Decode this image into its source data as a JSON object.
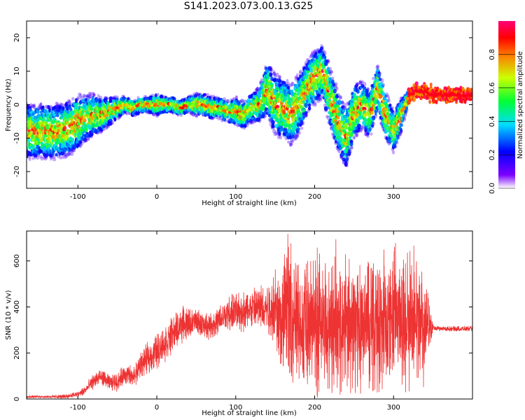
{
  "title": "S141.2023.073.00.13.G25",
  "colors": {
    "snr_line": "#ee3333",
    "axis": "#000000"
  },
  "chart_data": [
    {
      "type": "heatmap",
      "xlabel": "Height of straight line (km)",
      "ylabel": "Frequency (Hz)",
      "xlim": [
        -165,
        400
      ],
      "ylim": [
        -25,
        25
      ],
      "xticks": [
        -100,
        0,
        100,
        200,
        300
      ],
      "xtick_labels": [
        "-100",
        "0",
        "100",
        "200",
        "300"
      ],
      "yticks": [
        -20,
        -10,
        0,
        10,
        20
      ],
      "ytick_labels": [
        "-20",
        "-10",
        "0",
        "10",
        "20"
      ],
      "colorbar": {
        "label": "Normalized spectral amplitude",
        "range": [
          0,
          1
        ],
        "ticks": [
          0.0,
          0.2,
          0.4,
          0.6,
          0.8
        ],
        "tick_labels": [
          "0.0",
          "0.2",
          "0.4",
          "0.6",
          "0.8"
        ],
        "colormap": "rainbow (white-violet-blue-cyan-green-yellow-red-magenta)"
      },
      "ridge": {
        "x": [
          -125,
          -110,
          -100,
          -90,
          -80,
          -70,
          -60,
          -50,
          -40,
          -30,
          -20,
          -10,
          0,
          10,
          20,
          30,
          40,
          50,
          60,
          70,
          80,
          90,
          100,
          110,
          120,
          130,
          140,
          150,
          160,
          170,
          180,
          190,
          200,
          210,
          220,
          230,
          240,
          250,
          260,
          270,
          280,
          290,
          300,
          310,
          320,
          330,
          340,
          350,
          360,
          370,
          380,
          390,
          400
        ],
        "y": [
          -8,
          -7,
          -5,
          -4,
          -3,
          -3,
          -2,
          -1,
          0,
          -1,
          0,
          0,
          0,
          0,
          0,
          -1,
          0,
          0,
          0,
          -1,
          -1,
          -2,
          -2,
          -3,
          -1,
          0,
          5,
          0,
          -1,
          -3,
          0,
          5,
          8,
          10,
          2,
          -5,
          -10,
          -2,
          0,
          -3,
          5,
          -3,
          -8,
          -3,
          3,
          4,
          4,
          3,
          3,
          3,
          3,
          3,
          3
        ]
      },
      "spread_hz": [
        8,
        8,
        8,
        7,
        6,
        5,
        4,
        3,
        2,
        2,
        2,
        2,
        3,
        2,
        2,
        2,
        2,
        3,
        3,
        3,
        3,
        3,
        4,
        4,
        4,
        5,
        8,
        9,
        9,
        9,
        9,
        8,
        8,
        8,
        9,
        9,
        9,
        8,
        7,
        7,
        7,
        7,
        6,
        5,
        1,
        1,
        1,
        1,
        1,
        1,
        1,
        1,
        1
      ]
    },
    {
      "type": "line",
      "xlabel": "Height of straight line (km)",
      "ylabel": "SNR (10 * v/v)",
      "xlim": [
        -165,
        400
      ],
      "ylim": [
        0,
        730
      ],
      "xticks": [
        -100,
        0,
        100,
        200,
        300
      ],
      "xtick_labels": [
        "-100",
        "0",
        "100",
        "200",
        "300"
      ],
      "yticks": [
        0,
        200,
        400,
        600
      ],
      "ytick_labels": [
        "0",
        "200",
        "400",
        "600"
      ],
      "series": [
        {
          "x": [
            -165,
            -140,
            -120,
            -100,
            -90,
            -80,
            -70,
            -60,
            -50,
            -40,
            -30,
            -20,
            -10,
            0,
            10,
            20,
            30,
            40,
            50,
            60,
            70,
            80,
            90,
            100,
            110,
            120,
            130,
            140,
            150,
            160,
            170,
            180,
            190,
            200,
            210,
            220,
            230,
            240,
            250,
            260,
            270,
            280,
            290,
            300,
            310,
            320,
            330,
            340,
            350,
            360,
            370,
            380,
            390,
            400
          ],
          "mean": [
            10,
            10,
            10,
            20,
            40,
            80,
            95,
            70,
            75,
            110,
            90,
            150,
            180,
            210,
            240,
            280,
            320,
            330,
            335,
            320,
            320,
            340,
            370,
            380,
            380,
            390,
            395,
            400,
            400,
            330,
            330,
            330,
            320,
            320,
            330,
            330,
            320,
            320,
            320,
            330,
            320,
            320,
            330,
            320,
            320,
            330,
            330,
            320,
            310,
            305,
            305,
            305,
            305,
            305
          ],
          "amp": [
            5,
            5,
            8,
            12,
            20,
            30,
            30,
            30,
            35,
            40,
            45,
            50,
            60,
            70,
            70,
            70,
            70,
            60,
            50,
            50,
            50,
            60,
            70,
            70,
            80,
            80,
            90,
            110,
            150,
            240,
            260,
            260,
            260,
            260,
            260,
            250,
            250,
            250,
            260,
            250,
            260,
            260,
            260,
            250,
            250,
            240,
            230,
            220,
            10,
            10,
            10,
            10,
            10,
            10
          ]
        }
      ]
    }
  ]
}
